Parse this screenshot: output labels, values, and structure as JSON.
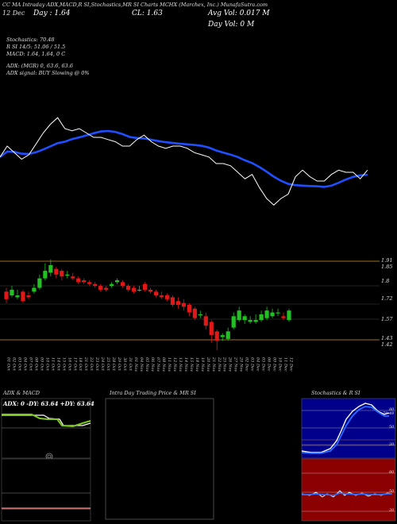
{
  "header": {
    "line1": "CC MA Intraday ADX,MACD,R SI,Stochastics,MR SI Charts MCHX (Marchex, Inc.) MunafaSutra.com",
    "close_text": "CL: 1.63",
    "day_label": "Day : 1.64",
    "avg_vol": "Avg Vol: 0.017  M",
    "day_vol": "Day Vol: 0  M",
    "date_label": "12 Dec",
    "stoch": "Stochastics: 70.48",
    "rsi": "R                    SI 14/5: 51.06 / 51.5",
    "macd": "MACD: 1.64, 1.64, 0  C",
    "adx": "ADX:                               (MGR) 0, 63.6,  63.6",
    "adx_signal": "ADX  signal:                                  BUY Slowing @ 0%"
  },
  "price_labels": [
    "1.91",
    "1.85",
    "1.8",
    "1.72",
    "1.57",
    "1.43",
    "1.42"
  ],
  "panels": {
    "adx_title": "ADX  & MACD",
    "adx_values": "ADX: 0   -DY: 63.64   +DY: 63.64",
    "intraday_title": "Intra  Day Trading Price  & MR                     SI",
    "stoch_title": "Stochastics & R                SI",
    "stoch_levels": [
      "80",
      "50",
      "20"
    ],
    "rsi_levels": [
      "80",
      "50",
      "20"
    ],
    "stoch_value": "70.48"
  },
  "chart_data": {
    "type": "candlestick",
    "title": "MCHX (Marchex, Inc.)",
    "dates": [
      "01 Oct",
      "02 Oct",
      "03 Oct",
      "04 Oct",
      "07 Oct",
      "08 Oct",
      "09 Oct",
      "10 Oct",
      "11 Oct",
      "14 Oct",
      "15 Oct",
      "16 Oct",
      "17 Oct",
      "18 Oct",
      "21 Oct",
      "22 Oct",
      "23 Oct",
      "24 Oct",
      "25 Oct",
      "28 Oct",
      "29 Oct",
      "30 Oct",
      "31 Oct",
      "01 Nov",
      "04 Nov",
      "05 Nov",
      "06 Nov",
      "07 Nov",
      "08 Nov",
      "11 Nov",
      "12 Nov",
      "13 Nov",
      "14 Nov",
      "15 Nov",
      "18 Nov",
      "19 Nov",
      "20 Nov",
      "21 Nov",
      "22 Nov",
      "25 Nov",
      "26 Nov",
      "27 Nov",
      "29 Nov",
      "02 Dec",
      "03 Dec",
      "04 Dec",
      "05 Dec",
      "06 Dec",
      "09 Dec",
      "10 Dec",
      "11 Dec",
      "12 Dec"
    ],
    "open": [
      1.73,
      1.71,
      1.7,
      1.73,
      1.71,
      1.73,
      1.75,
      1.8,
      1.83,
      1.85,
      1.84,
      1.82,
      1.81,
      1.8,
      1.79,
      1.78,
      1.77,
      1.76,
      1.75,
      1.76,
      1.78,
      1.78,
      1.76,
      1.75,
      1.74,
      1.77,
      1.74,
      1.73,
      1.71,
      1.71,
      1.7,
      1.68,
      1.67,
      1.66,
      1.64,
      1.61,
      1.6,
      1.57,
      1.52,
      1.49,
      1.48,
      1.54,
      1.58,
      1.58,
      1.57,
      1.57,
      1.58,
      1.59,
      1.6,
      1.62,
      1.6,
      1.58
    ],
    "close": [
      1.69,
      1.74,
      1.71,
      1.68,
      1.7,
      1.75,
      1.8,
      1.84,
      1.87,
      1.82,
      1.81,
      1.82,
      1.8,
      1.78,
      1.78,
      1.77,
      1.76,
      1.74,
      1.74,
      1.77,
      1.79,
      1.76,
      1.74,
      1.73,
      1.74,
      1.74,
      1.73,
      1.71,
      1.7,
      1.69,
      1.66,
      1.66,
      1.65,
      1.62,
      1.59,
      1.61,
      1.55,
      1.5,
      1.47,
      1.5,
      1.52,
      1.6,
      1.63,
      1.6,
      1.58,
      1.58,
      1.61,
      1.63,
      1.62,
      1.62,
      1.59,
      1.63
    ],
    "high": [
      1.75,
      1.76,
      1.74,
      1.74,
      1.73,
      1.77,
      1.82,
      1.88,
      1.9,
      1.86,
      1.85,
      1.84,
      1.83,
      1.81,
      1.8,
      1.79,
      1.78,
      1.77,
      1.76,
      1.78,
      1.8,
      1.79,
      1.77,
      1.76,
      1.76,
      1.78,
      1.75,
      1.74,
      1.73,
      1.72,
      1.71,
      1.7,
      1.69,
      1.67,
      1.65,
      1.63,
      1.62,
      1.58,
      1.53,
      1.51,
      1.54,
      1.62,
      1.65,
      1.61,
      1.6,
      1.61,
      1.63,
      1.65,
      1.64,
      1.64,
      1.62,
      1.64
    ],
    "low": [
      1.67,
      1.7,
      1.69,
      1.67,
      1.69,
      1.72,
      1.74,
      1.79,
      1.81,
      1.8,
      1.79,
      1.8,
      1.79,
      1.77,
      1.77,
      1.76,
      1.75,
      1.73,
      1.73,
      1.75,
      1.77,
      1.75,
      1.73,
      1.72,
      1.73,
      1.73,
      1.72,
      1.7,
      1.69,
      1.68,
      1.65,
      1.64,
      1.63,
      1.6,
      1.58,
      1.59,
      1.53,
      1.46,
      1.42,
      1.47,
      1.47,
      1.53,
      1.57,
      1.56,
      1.56,
      1.56,
      1.57,
      1.58,
      1.59,
      1.6,
      1.58,
      1.57
    ],
    "ylim": [
      1.4,
      1.92
    ]
  }
}
